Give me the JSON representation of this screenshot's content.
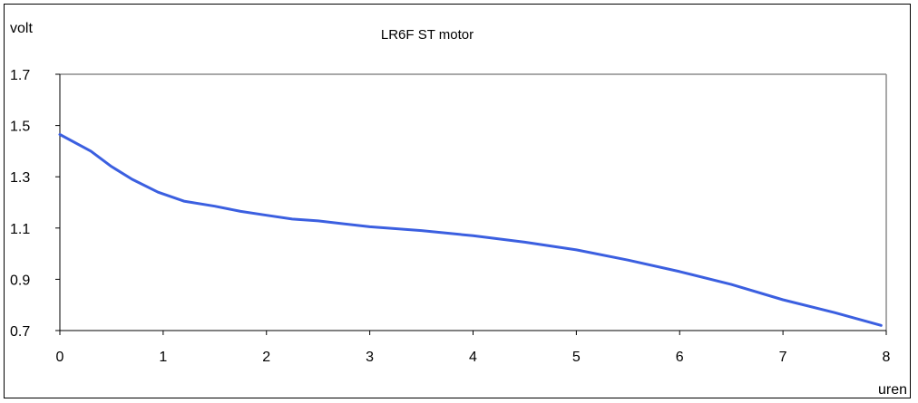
{
  "chart_data": {
    "type": "line",
    "title": "LR6F ST motor",
    "ylabel": "volt",
    "xlabel": "uren",
    "xlim": [
      0,
      8
    ],
    "ylim": [
      0.7,
      1.7
    ],
    "xticks": [
      "0",
      "1",
      "2",
      "3",
      "4",
      "5",
      "6",
      "7",
      "8"
    ],
    "yticks": [
      "0.7",
      "0.9",
      "1.1",
      "1.3",
      "1.5",
      "1.7"
    ],
    "grid": false,
    "legend": "none",
    "series": [
      {
        "color": "#3b5fe0",
        "x": [
          0,
          0.3,
          0.5,
          0.7,
          0.95,
          1.2,
          1.5,
          1.75,
          2.0,
          2.25,
          2.5,
          3.0,
          3.5,
          4.0,
          4.5,
          5.0,
          5.5,
          6.0,
          6.5,
          7.0,
          7.5,
          7.95
        ],
        "y": [
          1.465,
          1.4,
          1.34,
          1.29,
          1.24,
          1.205,
          1.185,
          1.165,
          1.15,
          1.135,
          1.128,
          1.105,
          1.09,
          1.07,
          1.045,
          1.015,
          0.975,
          0.93,
          0.88,
          0.82,
          0.77,
          0.72
        ]
      }
    ]
  }
}
